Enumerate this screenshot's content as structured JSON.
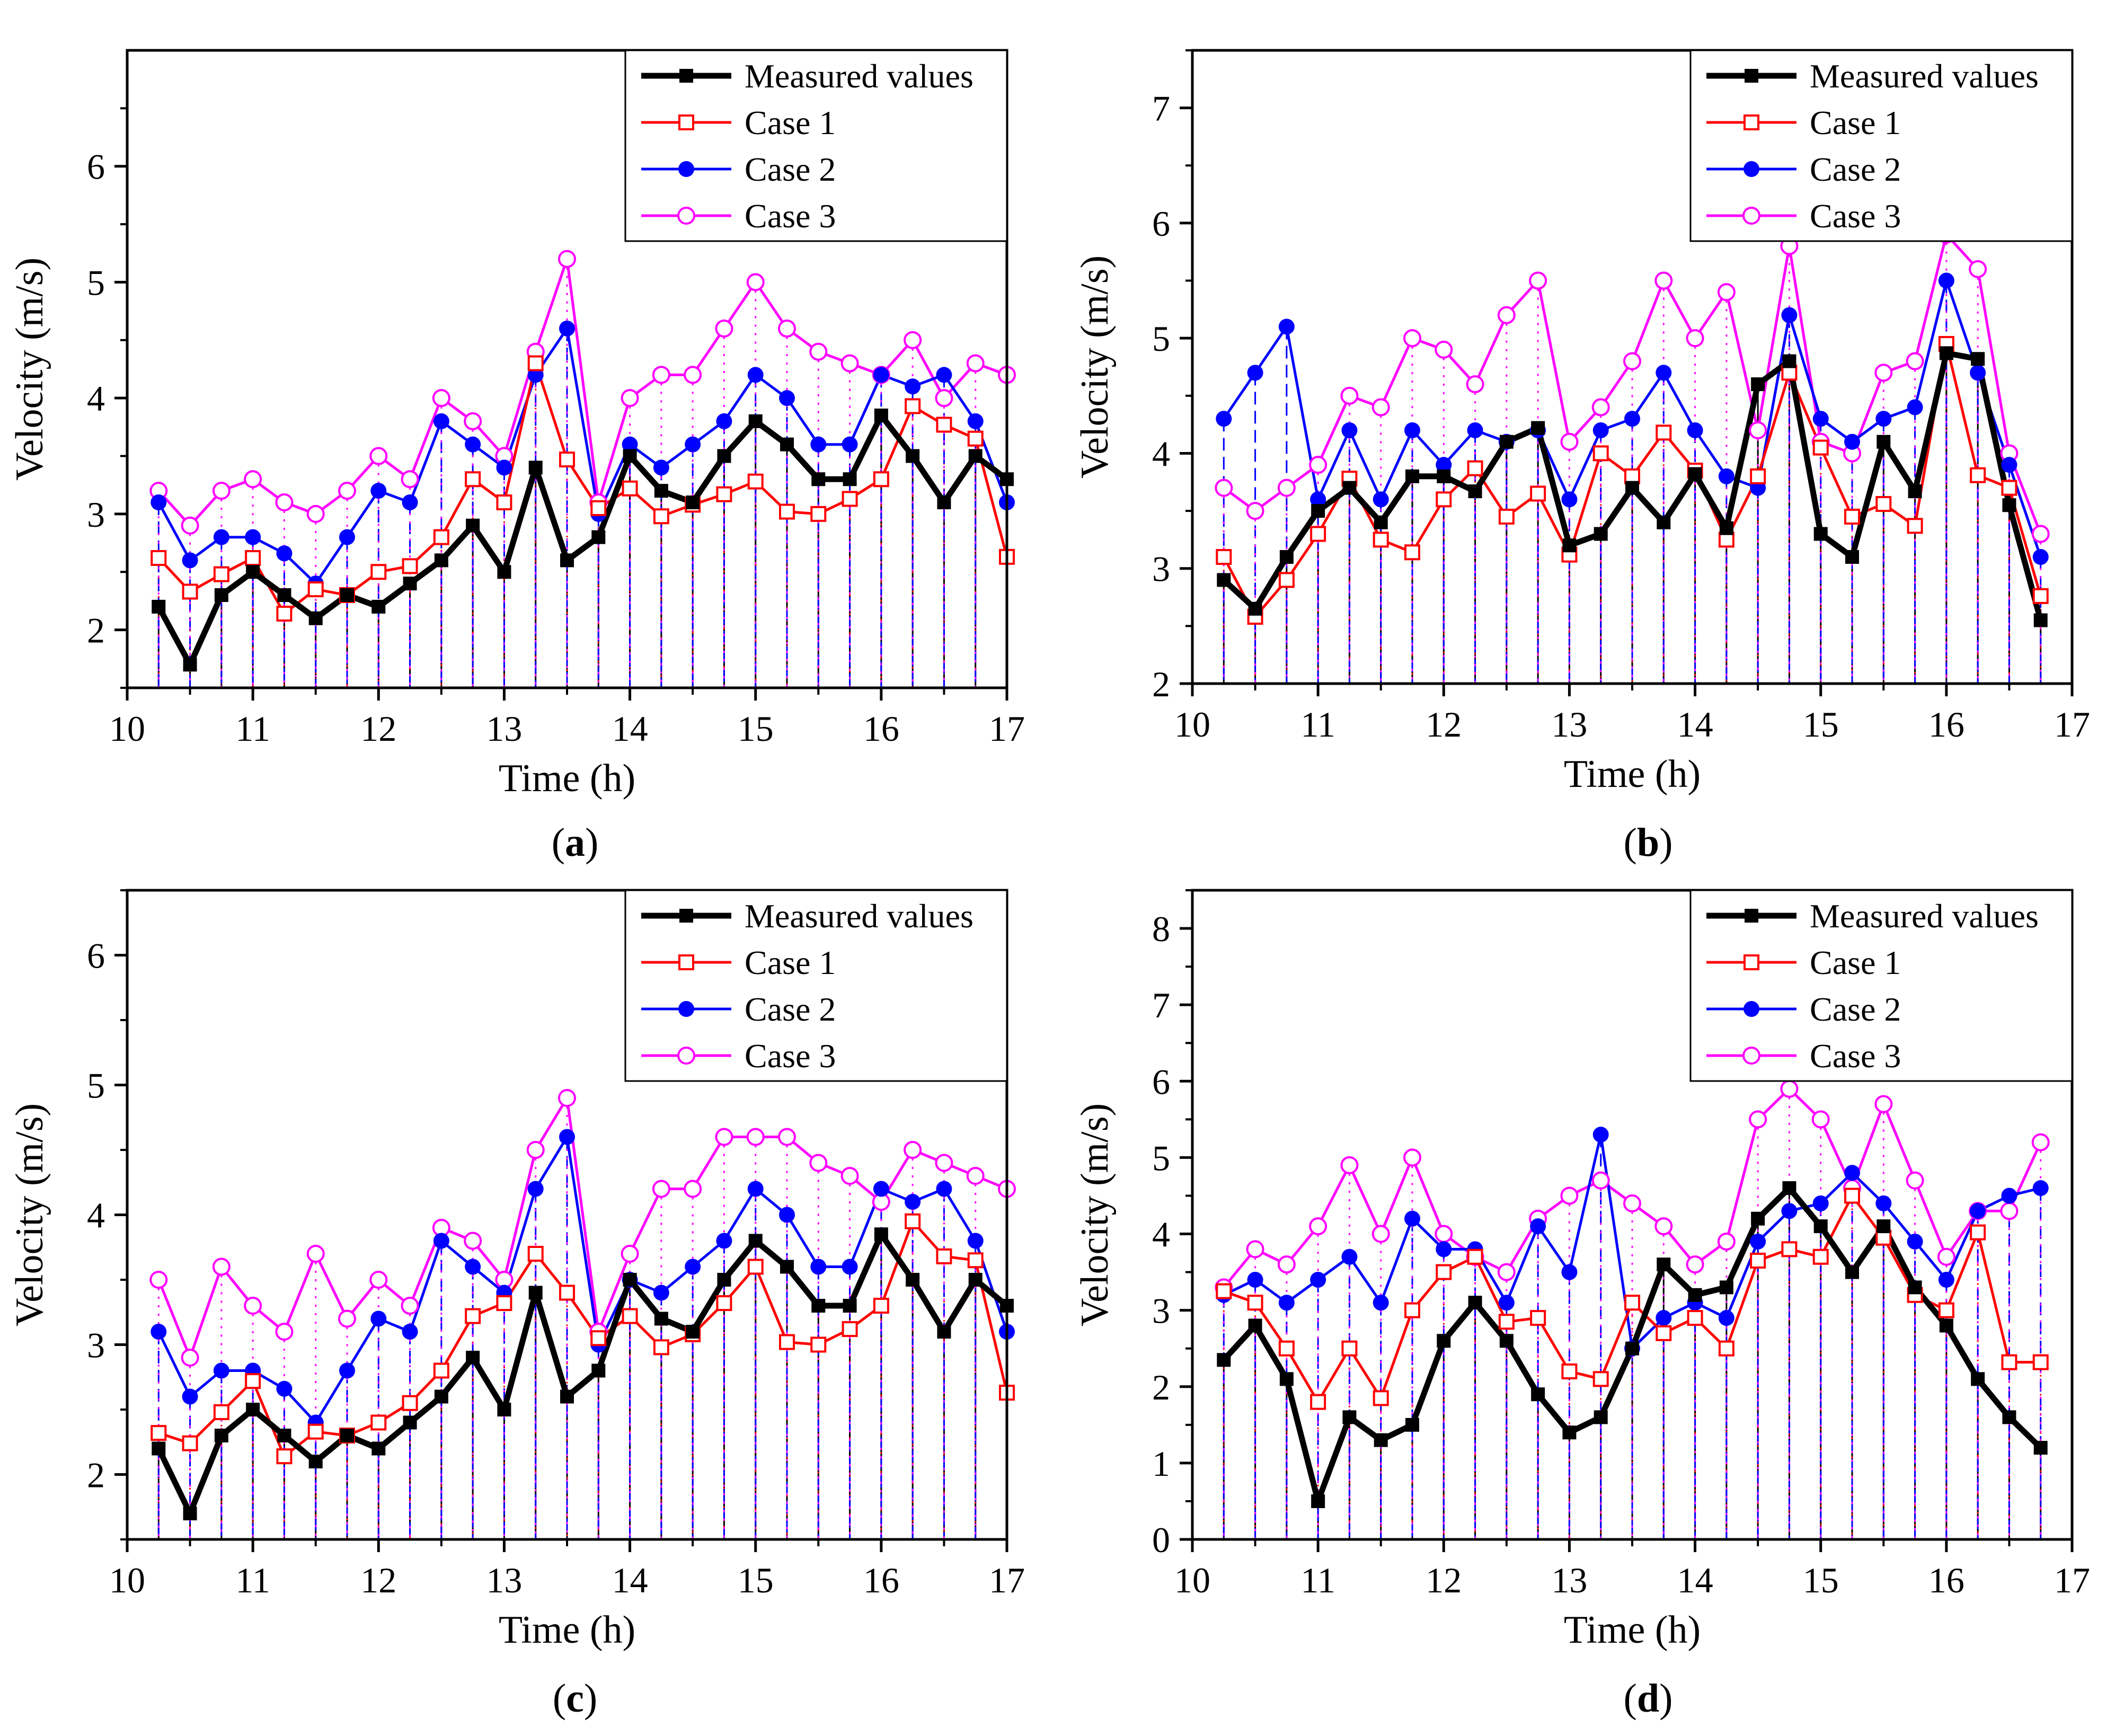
{
  "figure": {
    "panels": [
      {
        "id": "a",
        "label_open": "(",
        "label_letter": "a",
        "label_close": ")"
      },
      {
        "id": "b",
        "label_open": "(",
        "label_letter": "b",
        "label_close": ")"
      },
      {
        "id": "c",
        "label_open": "(",
        "label_letter": "c",
        "label_close": ")"
      },
      {
        "id": "d",
        "label_open": "(",
        "label_letter": "d",
        "label_close": ")"
      }
    ]
  },
  "colors": {
    "measured": "#000000",
    "case1": "#ff0000",
    "case2": "#0000ff",
    "case3": "#ff00ff"
  },
  "chart_data": [
    {
      "id": "a",
      "type": "line",
      "xlabel": "Time (h)",
      "ylabel": "Velocity (m/s)",
      "xlim": [
        10,
        17
      ],
      "ylim": [
        1.5,
        7
      ],
      "xticks": [
        10,
        11,
        12,
        13,
        14,
        15,
        16,
        17
      ],
      "yticks": [
        2,
        3,
        4,
        5,
        6
      ],
      "legend": "top-right",
      "x": [
        10.25,
        10.5,
        10.75,
        11,
        11.25,
        11.5,
        11.75,
        12,
        12.25,
        12.5,
        12.75,
        13,
        13.25,
        13.5,
        13.75,
        14,
        14.25,
        14.5,
        14.75,
        15,
        15.25,
        15.5,
        15.75,
        16,
        16.25,
        16.5,
        16.75,
        17
      ],
      "series": [
        {
          "name": "Measured values",
          "values": [
            2.2,
            1.7,
            2.3,
            2.5,
            2.3,
            2.1,
            2.3,
            2.2,
            2.4,
            2.6,
            2.9,
            2.5,
            3.4,
            2.6,
            2.8,
            3.5,
            3.2,
            3.1,
            3.5,
            3.8,
            3.6,
            3.3,
            3.3,
            3.85,
            3.5,
            3.1,
            3.5,
            3.3
          ]
        },
        {
          "name": "Case 1",
          "values": [
            2.62,
            2.33,
            2.48,
            2.62,
            2.14,
            2.35,
            2.3,
            2.5,
            2.55,
            2.8,
            3.3,
            3.1,
            4.3,
            3.47,
            3.05,
            3.22,
            2.98,
            3.08,
            3.17,
            3.28,
            3.02,
            3.0,
            3.13,
            3.3,
            3.93,
            3.77,
            3.65,
            2.63
          ]
        },
        {
          "name": "Case 2",
          "values": [
            3.1,
            2.6,
            2.8,
            2.8,
            2.66,
            2.4,
            2.8,
            3.2,
            3.1,
            3.8,
            3.6,
            3.4,
            4.2,
            4.6,
            3.0,
            3.6,
            3.4,
            3.6,
            3.8,
            4.2,
            4.0,
            3.6,
            3.6,
            4.2,
            4.1,
            4.2,
            3.8,
            3.1
          ]
        },
        {
          "name": "Case 3",
          "values": [
            3.2,
            2.9,
            3.2,
            3.3,
            3.1,
            3.0,
            3.2,
            3.5,
            3.3,
            4.0,
            3.8,
            3.5,
            4.4,
            5.2,
            3.1,
            4.0,
            4.2,
            4.2,
            4.6,
            5.0,
            4.6,
            4.4,
            4.3,
            4.2,
            4.5,
            4.0,
            4.3,
            4.2
          ]
        }
      ]
    },
    {
      "id": "b",
      "type": "line",
      "xlabel": "Time (h)",
      "ylabel": "Velocity (m/s)",
      "xlim": [
        10,
        17
      ],
      "ylim": [
        2,
        7.5
      ],
      "xticks": [
        10,
        11,
        12,
        13,
        14,
        15,
        16,
        17
      ],
      "yticks": [
        2,
        3,
        4,
        5,
        6,
        7
      ],
      "legend": "top-right",
      "x": [
        10.25,
        10.5,
        10.75,
        11,
        11.25,
        11.5,
        11.75,
        12,
        12.25,
        12.5,
        12.75,
        13,
        13.25,
        13.5,
        13.75,
        14,
        14.25,
        14.5,
        14.75,
        15,
        15.25,
        15.5,
        15.75,
        16,
        16.25,
        16.5,
        16.75
      ],
      "series": [
        {
          "name": "Measured values",
          "values": [
            2.9,
            2.65,
            3.1,
            3.5,
            3.7,
            3.4,
            3.8,
            3.8,
            3.67,
            4.1,
            4.22,
            3.2,
            3.3,
            3.7,
            3.4,
            3.82,
            3.35,
            4.6,
            4.8,
            3.3,
            3.1,
            4.1,
            3.67,
            4.87,
            4.82,
            3.55,
            2.55
          ]
        },
        {
          "name": "Case 1",
          "values": [
            3.1,
            2.58,
            2.9,
            3.3,
            3.78,
            3.25,
            3.14,
            3.6,
            3.87,
            3.45,
            3.65,
            3.12,
            4.0,
            3.8,
            4.18,
            3.85,
            3.25,
            3.8,
            4.7,
            4.05,
            3.45,
            3.56,
            3.37,
            4.95,
            3.81,
            3.7,
            2.76
          ]
        },
        {
          "name": "Case 2",
          "values": [
            4.3,
            4.7,
            5.1,
            3.6,
            4.2,
            3.6,
            4.2,
            3.9,
            4.2,
            4.1,
            4.2,
            3.6,
            4.2,
            4.3,
            4.7,
            4.2,
            3.8,
            3.7,
            5.2,
            4.3,
            4.1,
            4.3,
            4.4,
            5.5,
            4.7,
            3.9,
            3.1
          ]
        },
        {
          "name": "Case 3",
          "values": [
            3.7,
            3.5,
            3.7,
            3.9,
            4.5,
            4.4,
            5.0,
            4.9,
            4.6,
            5.2,
            5.5,
            4.1,
            4.4,
            4.8,
            5.5,
            5.0,
            5.4,
            4.2,
            5.8,
            4.1,
            4.0,
            4.7,
            4.8,
            5.9,
            5.6,
            4.0,
            3.3
          ]
        }
      ]
    },
    {
      "id": "c",
      "type": "line",
      "xlabel": "Time (h)",
      "ylabel": "Velocity (m/s)",
      "xlim": [
        10,
        17
      ],
      "ylim": [
        1.5,
        6.5
      ],
      "xticks": [
        10,
        11,
        12,
        13,
        14,
        15,
        16,
        17
      ],
      "yticks": [
        2,
        3,
        4,
        5,
        6
      ],
      "legend": "top-right",
      "x": [
        10.25,
        10.5,
        10.75,
        11,
        11.25,
        11.5,
        11.75,
        12,
        12.25,
        12.5,
        12.75,
        13,
        13.25,
        13.5,
        13.75,
        14,
        14.25,
        14.5,
        14.75,
        15,
        15.25,
        15.5,
        15.75,
        16,
        16.25,
        16.5,
        16.75,
        17
      ],
      "series": [
        {
          "name": "Measured values",
          "values": [
            2.2,
            1.7,
            2.3,
            2.5,
            2.3,
            2.1,
            2.3,
            2.2,
            2.4,
            2.6,
            2.9,
            2.5,
            3.4,
            2.6,
            2.8,
            3.5,
            3.2,
            3.1,
            3.5,
            3.8,
            3.6,
            3.3,
            3.3,
            3.85,
            3.5,
            3.1,
            3.5,
            3.3
          ]
        },
        {
          "name": "Case 1",
          "values": [
            2.32,
            2.24,
            2.48,
            2.72,
            2.14,
            2.33,
            2.3,
            2.4,
            2.55,
            2.8,
            3.22,
            3.32,
            3.7,
            3.4,
            3.05,
            3.22,
            2.98,
            3.08,
            3.32,
            3.6,
            3.02,
            3.0,
            3.12,
            3.3,
            3.95,
            3.68,
            3.65,
            2.63
          ]
        },
        {
          "name": "Case 2",
          "values": [
            3.1,
            2.6,
            2.8,
            2.8,
            2.66,
            2.4,
            2.8,
            3.2,
            3.1,
            3.8,
            3.6,
            3.4,
            4.2,
            4.6,
            3.0,
            3.5,
            3.4,
            3.6,
            3.8,
            4.2,
            4.0,
            3.6,
            3.6,
            4.2,
            4.1,
            4.2,
            3.8,
            3.1
          ]
        },
        {
          "name": "Case 3",
          "values": [
            3.5,
            2.9,
            3.6,
            3.3,
            3.1,
            3.7,
            3.2,
            3.5,
            3.3,
            3.9,
            3.8,
            3.5,
            4.5,
            4.9,
            3.1,
            3.7,
            4.2,
            4.2,
            4.6,
            4.6,
            4.6,
            4.4,
            4.3,
            4.1,
            4.5,
            4.4,
            4.3,
            4.2
          ]
        }
      ]
    },
    {
      "id": "d",
      "type": "line",
      "xlabel": "Time (h)",
      "ylabel": "Velocity (m/s)",
      "xlim": [
        10,
        17
      ],
      "ylim": [
        0,
        8.5
      ],
      "xticks": [
        10,
        11,
        12,
        13,
        14,
        15,
        16,
        17
      ],
      "yticks": [
        0,
        1,
        2,
        3,
        4,
        5,
        6,
        7,
        8
      ],
      "legend": "top-right",
      "x": [
        10.25,
        10.5,
        10.75,
        11,
        11.25,
        11.5,
        11.75,
        12,
        12.25,
        12.5,
        12.75,
        13,
        13.25,
        13.5,
        13.75,
        14,
        14.25,
        14.5,
        14.75,
        15,
        15.25,
        15.5,
        15.75,
        16,
        16.25,
        16.5,
        16.75
      ],
      "series": [
        {
          "name": "Measured values",
          "values": [
            2.35,
            2.8,
            2.1,
            0.5,
            1.6,
            1.3,
            1.5,
            2.6,
            3.1,
            2.6,
            1.9,
            1.4,
            1.6,
            2.5,
            3.6,
            3.2,
            3.3,
            4.2,
            4.6,
            4.1,
            3.5,
            4.1,
            3.3,
            2.8,
            2.1,
            1.6,
            1.2
          ]
        },
        {
          "name": "Case 1",
          "values": [
            3.25,
            3.1,
            2.5,
            1.8,
            2.5,
            1.85,
            3.0,
            3.5,
            3.7,
            2.85,
            2.9,
            2.2,
            2.1,
            3.1,
            2.7,
            2.9,
            2.5,
            3.65,
            3.8,
            3.7,
            4.5,
            3.95,
            3.2,
            3.0,
            4.02,
            2.32,
            2.32
          ]
        },
        {
          "name": "Case 2",
          "values": [
            3.2,
            3.4,
            3.1,
            3.4,
            3.7,
            3.1,
            4.2,
            3.8,
            3.8,
            3.1,
            4.1,
            3.5,
            5.3,
            2.5,
            2.9,
            3.1,
            2.9,
            3.9,
            4.3,
            4.4,
            4.8,
            4.4,
            3.9,
            3.4,
            4.3,
            4.5,
            4.6
          ]
        },
        {
          "name": "Case 3",
          "values": [
            3.3,
            3.8,
            3.6,
            4.1,
            4.9,
            4.0,
            5.0,
            4.0,
            3.7,
            3.5,
            4.2,
            4.5,
            4.7,
            4.4,
            4.1,
            3.6,
            3.9,
            5.5,
            5.9,
            5.5,
            4.6,
            5.7,
            4.7,
            3.7,
            4.3,
            4.3,
            5.2
          ]
        }
      ]
    }
  ]
}
